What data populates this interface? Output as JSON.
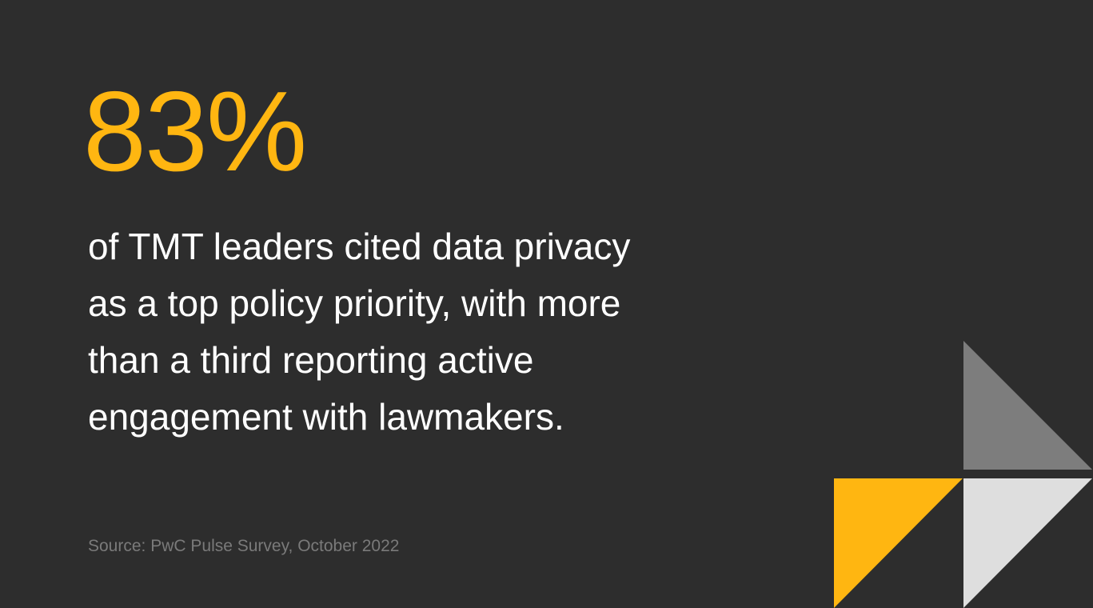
{
  "stat": {
    "value": "83%"
  },
  "statement": {
    "lines": [
      "of TMT leaders cited data privacy",
      "as a top policy priority, with more",
      "than a third reporting active",
      "engagement with lawmakers."
    ]
  },
  "source": {
    "text": "Source: PwC Pulse Survey, October 2022"
  },
  "colors": {
    "background": "#2d2d2d",
    "accent": "#ffb611",
    "body_text": "#ffffff",
    "source_text": "#7a7a7a",
    "triangle_gray": "#7d7d7d",
    "triangle_yellow": "#ffb611",
    "triangle_light": "#dedede"
  }
}
